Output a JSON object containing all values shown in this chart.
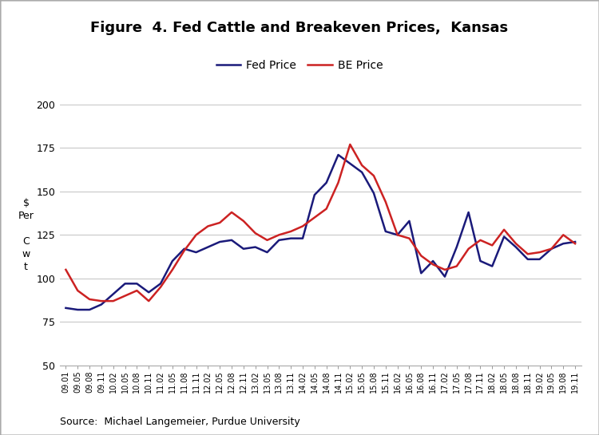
{
  "title": "Figure  4. Fed Cattle and Breakeven Prices,  Kansas",
  "source": "Source:  Michael Langemeier, Purdue University",
  "ylim": [
    50,
    200
  ],
  "yticks": [
    50,
    75,
    100,
    125,
    150,
    175,
    200
  ],
  "fed_color": "#1a1a7a",
  "be_color": "#cc2222",
  "legend_labels": [
    "Fed Price",
    "BE Price"
  ],
  "x_labels": [
    "09.01",
    "09.05",
    "09.08",
    "09.11",
    "10.02",
    "10.05",
    "10.08",
    "10.11",
    "11.02",
    "11.05",
    "11.08",
    "11.11",
    "12.02",
    "12.05",
    "12.08",
    "12.11",
    "13.02",
    "13.05",
    "13.08",
    "13.11",
    "14.02",
    "14.05",
    "14.08",
    "14.11",
    "15.02",
    "15.05",
    "15.08",
    "15.11",
    "16.02",
    "16.05",
    "16.08",
    "16.11",
    "17.02",
    "17.05",
    "17.08",
    "17.11",
    "18.02",
    "18.05",
    "18.08",
    "18.11",
    "19.02",
    "19.05",
    "19.08",
    "19.11"
  ],
  "fed_price": [
    83,
    82,
    82,
    85,
    91,
    97,
    97,
    92,
    97,
    110,
    117,
    115,
    118,
    121,
    122,
    117,
    118,
    115,
    122,
    123,
    123,
    148,
    155,
    171,
    166,
    161,
    149,
    127,
    125,
    133,
    103,
    110,
    101,
    118,
    138,
    110,
    107,
    124,
    118,
    111,
    111,
    117,
    120,
    121
  ],
  "be_price": [
    105,
    93,
    88,
    87,
    87,
    90,
    93,
    87,
    95,
    105,
    116,
    125,
    130,
    132,
    138,
    133,
    126,
    122,
    125,
    127,
    130,
    135,
    140,
    155,
    177,
    165,
    159,
    144,
    125,
    123,
    113,
    108,
    105,
    107,
    117,
    122,
    119,
    128,
    120,
    114,
    115,
    117,
    125,
    120
  ],
  "fig_border_color": "#aaaaaa",
  "grid_color": "#c8c8c8",
  "ylabel_lines": [
    "$",
    "Per",
    "",
    "C",
    "w",
    "t"
  ],
  "ylabel_fontsize": 9,
  "title_fontsize": 13,
  "legend_fontsize": 10,
  "source_fontsize": 9,
  "line_width": 1.8
}
